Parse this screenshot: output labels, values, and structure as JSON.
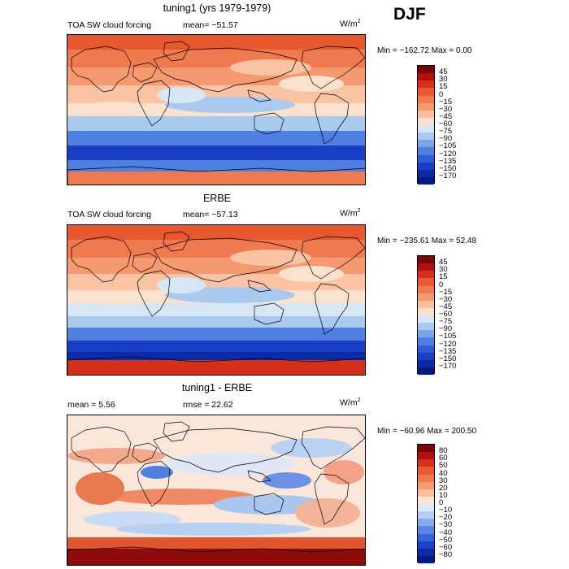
{
  "season": "DJF",
  "panels": [
    {
      "title": "tuning1 (yrs 1979-1979)",
      "field_label": "TOA SW cloud forcing",
      "mean_text": "mean= −51.57",
      "units": "W/m",
      "units_exp": "2",
      "min_max": "Min = −162.72 Max =    0.00",
      "style": "model",
      "levels": [
        "45",
        "30",
        "15",
        "0",
        "−15",
        "−30",
        "−45",
        "−60",
        "−75",
        "−90",
        "−105",
        "−120",
        "−135",
        "−150",
        "−170"
      ],
      "colors": [
        "#7a0403",
        "#b30f0f",
        "#d6301d",
        "#e85a36",
        "#f07a4f",
        "#f59a70",
        "#f9bf9e",
        "#fbe2cf",
        "#d7e6f5",
        "#a9c9ef",
        "#7aa5e8",
        "#4f7fe0",
        "#2f5cd6",
        "#1a3ec4",
        "#0b2ba6",
        "#041a80"
      ]
    },
    {
      "title": "ERBE",
      "field_label": "TOA SW cloud forcing",
      "mean_text": "mean= −57.13",
      "units": "W/m",
      "units_exp": "2",
      "min_max": "Min = −235.61 Max =   52.48",
      "style": "obs",
      "levels": [
        "45",
        "30",
        "15",
        "0",
        "−15",
        "−30",
        "−45",
        "−60",
        "−75",
        "−90",
        "−105",
        "−120",
        "−135",
        "−150",
        "−170"
      ],
      "colors": [
        "#7a0403",
        "#b30f0f",
        "#d6301d",
        "#e85a36",
        "#f07a4f",
        "#f59a70",
        "#f9bf9e",
        "#fbe2cf",
        "#d7e6f5",
        "#a9c9ef",
        "#7aa5e8",
        "#4f7fe0",
        "#2f5cd6",
        "#1a3ec4",
        "#0b2ba6",
        "#041a80"
      ]
    },
    {
      "title": "tuning1 - ERBE",
      "field_label": "",
      "mean_text": "mean =    5.56",
      "rmse_text": "rmse =   22.62",
      "units": "W/m",
      "units_exp": "2",
      "min_max": "Min = −60.96 Max = 200.50",
      "style": "diff",
      "levels": [
        "80",
        "60",
        "50",
        "40",
        "30",
        "20",
        "10",
        "0",
        "−10",
        "−20",
        "−30",
        "−40",
        "−50",
        "−60",
        "−80"
      ],
      "colors": [
        "#7a0403",
        "#b30f0f",
        "#d6301d",
        "#e85a36",
        "#f07a4f",
        "#f59a70",
        "#f9bf9e",
        "#fde6d8",
        "#dde9f7",
        "#b4cff1",
        "#86acea",
        "#5b86e2",
        "#3763d8",
        "#1c42c6",
        "#0b2ba6",
        "#041a80"
      ]
    }
  ]
}
